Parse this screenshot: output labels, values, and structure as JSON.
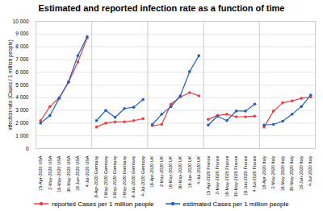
{
  "chart_data": {
    "type": "line",
    "title": "Estimated and reported infection rate as a function of time",
    "ylabel": "infection rate (Cases / 1 million people)",
    "categories": [
      "15-Apr-2020 USA",
      "2-May-2020 USA",
      "16-May-2020 USA",
      "30-May-2020 USA",
      "18-Jun-2020 USA",
      "4-Jul-2020 USA",
      "18-Apr-2020 Germany",
      "2-May-2020 Germany",
      "16-May-2020 Germany",
      "30-May-2020 Germany",
      "18-Jun-2020 Germany",
      "4-Jul-2020 Germany",
      "18-Apr-2020 UK",
      "2-May-2020 UK",
      "16-May-2020 UK",
      "30-May-2020 UK",
      "18-Jun-2020 UK",
      "4-Jul-2020 UK",
      "15-Apr-2020 France",
      "2-May-2020 France",
      "16-May-2020 France",
      "30-May-2020 France",
      "18-Jun-2020 France",
      "4-Jul-2020 France",
      "18-Apr-2020 Italy",
      "2-May-2020 Italy",
      "16-May-2020 Italy",
      "30-May-2020 Italy",
      "18-Jun-2020 Italy",
      "4-Jul-2020 Italy"
    ],
    "series": [
      {
        "name": "reported Cases per 1 million people",
        "color": "#e84040",
        "values": [
          2200,
          3300,
          4000,
          5200,
          6800,
          8700,
          1700,
          2000,
          2100,
          2100,
          2200,
          2350,
          1800,
          1900,
          3500,
          4050,
          4400,
          4150,
          2300,
          2600,
          2700,
          2500,
          2500,
          2550,
          1700,
          2950,
          3600,
          3750,
          3950,
          4050
        ]
      },
      {
        "name": "estimated Cases per 1 million people",
        "color": "#2060c0",
        "values": [
          2000,
          2600,
          3950,
          5250,
          7300,
          8800,
          2200,
          3000,
          2450,
          3150,
          3250,
          3850,
          1900,
          2700,
          3300,
          4150,
          6050,
          7300,
          1850,
          2550,
          2200,
          2950,
          2950,
          3500,
          1850,
          1900,
          2150,
          2700,
          3300,
          4200
        ]
      }
    ],
    "ylim": [
      0,
      10000
    ],
    "yticks": [
      0,
      {
        "value": 1000,
        "label": "1 000"
      },
      {
        "value": 2000,
        "label": "2 000"
      },
      {
        "value": 3000,
        "label": "3 000"
      },
      {
        "value": 4000,
        "label": "4 000"
      },
      {
        "value": 5000,
        "label": "5 000"
      },
      {
        "value": 6000,
        "label": "6 000"
      },
      {
        "value": 7000,
        "label": "7 000"
      },
      {
        "value": 8000,
        "label": "8 000"
      },
      {
        "value": 9000,
        "label": "9 000"
      },
      {
        "value": 10000,
        "label": "10 000"
      }
    ],
    "grid": true,
    "legend": "bottom",
    "marker": "circle"
  }
}
